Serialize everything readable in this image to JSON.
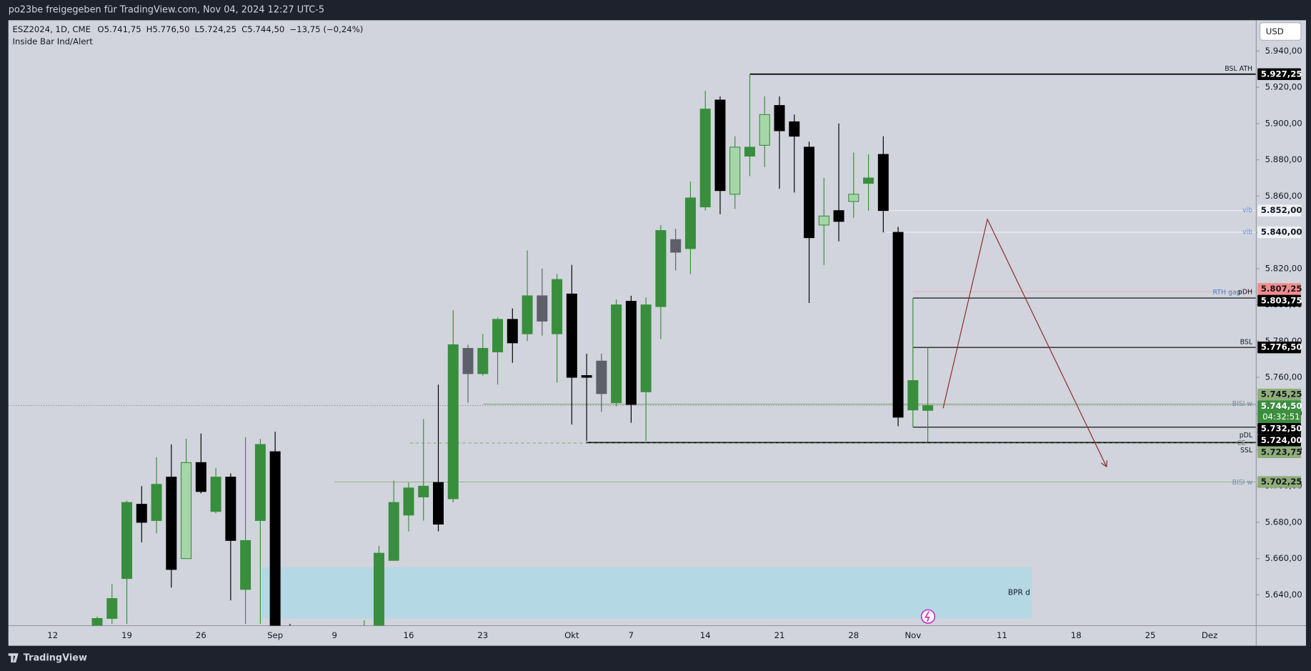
{
  "header": {
    "share_text": "po23be freigegeben für TradingView.com, Nov 04, 2024 12:27 UTC-5"
  },
  "footer": {
    "brand": "TradingView"
  },
  "chart_data": {
    "type": "candlestick",
    "legend": {
      "symbol": "ESZ2024, 1D, CME",
      "values": [
        "O5.741,75",
        "H5.776,50",
        "L5.724,25",
        "C5.744,50",
        "−13,75 (−0,24%)"
      ],
      "indicator": "Inside Bar Ind/Alert"
    },
    "currency": "USD",
    "categories": [
      "12",
      null,
      null,
      null,
      null,
      "19",
      null,
      null,
      null,
      null,
      "26",
      null,
      null,
      null,
      null,
      "Sep",
      null,
      null,
      null,
      "9",
      null,
      null,
      null,
      null,
      "16",
      null,
      null,
      null,
      null,
      "23",
      null,
      null,
      null,
      null,
      null,
      "Okt",
      null,
      null,
      null,
      "7",
      null,
      null,
      null,
      null,
      "14",
      null,
      null,
      null,
      null,
      "21",
      null,
      null,
      null,
      null,
      "28",
      null,
      null,
      null,
      "Nov",
      null,
      null,
      null,
      null,
      null,
      "11",
      null,
      null,
      null,
      null,
      "18",
      null,
      null,
      null,
      null,
      "25",
      null,
      null,
      null,
      "Dez"
    ],
    "open": [
      null,
      null,
      null,
      5621,
      5627,
      5649,
      5690,
      5681,
      5705,
      5660,
      5713,
      5686,
      5705,
      5643,
      5681,
      5719,
      5615,
      null,
      null,
      null,
      null,
      5600,
      5620,
      5659,
      5684,
      5694,
      5702,
      5693,
      5776,
      5762,
      5774,
      5792,
      5784,
      5805,
      5784,
      5806,
      5761,
      5769,
      5746,
      5802,
      5752,
      5799,
      5836,
      5831,
      5854,
      5913,
      5861,
      5882,
      5888,
      5910,
      5901,
      5887,
      5844,
      5852,
      5857,
      5867,
      5883,
      5840,
      5742,
      5741.75,
      null,
      null,
      null,
      null,
      null,
      null,
      null,
      null,
      null,
      null,
      null,
      null,
      null,
      null,
      null,
      null,
      null,
      null,
      null
    ],
    "high": [
      null,
      null,
      null,
      5628,
      5646,
      5692,
      5700,
      5716,
      5723,
      5726,
      5729,
      5710,
      5707,
      5727,
      5726,
      5730,
      5624,
      null,
      null,
      null,
      null,
      5626,
      5667,
      5703,
      5702,
      5737,
      5756,
      5797,
      5778,
      5784,
      5793,
      5798,
      5830,
      5820,
      5817,
      5822,
      5773,
      5773,
      5803,
      5805,
      5804,
      5844,
      5842,
      5868,
      5918,
      5915,
      5893,
      5927.25,
      5915,
      5915,
      5905,
      5890,
      5870,
      5900,
      5884,
      5883,
      5893,
      5843,
      5803.75,
      5776.5,
      null,
      null,
      null,
      null,
      null,
      null,
      null,
      null,
      null,
      null,
      null,
      null,
      null,
      null,
      null,
      null,
      null,
      null,
      null
    ],
    "low": [
      null,
      null,
      null,
      5615,
      5624,
      5624,
      5669,
      5674,
      5644,
      5660,
      5696,
      5685,
      5637,
      5624,
      5624,
      5590,
      5585,
      null,
      null,
      null,
      null,
      5580,
      5610,
      5659,
      5675,
      5681,
      5675,
      5691,
      5746,
      5761,
      5756,
      5768,
      5780,
      5783,
      5757,
      5734,
      5725,
      5741,
      5744,
      5735,
      5725,
      5781,
      5819,
      5817,
      5852,
      5850,
      5853,
      5871,
      5876,
      5864,
      5862,
      5801,
      5822,
      5835,
      5848,
      5852,
      5840,
      5733,
      5732.5,
      5724.25,
      null,
      null,
      null,
      null,
      null,
      null,
      null,
      null,
      null,
      null,
      null,
      null,
      null,
      null,
      null,
      null,
      null,
      null,
      null
    ],
    "close": [
      null,
      null,
      null,
      5627,
      5638,
      5691,
      5680,
      5701,
      5654,
      5713,
      5697,
      5705,
      5670,
      5670,
      5723,
      5600,
      5595,
      null,
      null,
      null,
      null,
      5615,
      5663,
      5691,
      5699,
      5700,
      5679,
      5778,
      5762,
      5776,
      5792,
      5779,
      5805,
      5791,
      5814,
      5760,
      5760,
      5751,
      5800,
      5745,
      5800,
      5841,
      5829,
      5859,
      5908,
      5863,
      5887,
      5887,
      5905,
      5896,
      5893,
      5837,
      5849,
      5846,
      5861,
      5870,
      5852,
      5738,
      5758.25,
      5744.5,
      null,
      null,
      null,
      null,
      null,
      null,
      null,
      null,
      null,
      null,
      null,
      null,
      null,
      null,
      null,
      null,
      null,
      null,
      null
    ],
    "candle_colors": [
      null,
      null,
      null,
      "#388e3c",
      "#388e3c",
      "#388e3c",
      "#000000",
      "#388e3c",
      "#000000",
      "#a5d6a7",
      "#000000",
      "#388e3c",
      "#000000",
      "#388e3c",
      "#388e3c",
      "#000000",
      "#000000",
      null,
      null,
      null,
      null,
      "#388e3c",
      "#388e3c",
      "#388e3c",
      "#388e3c",
      "#388e3c",
      "#000000",
      "#388e3c",
      "#5d606b",
      "#388e3c",
      "#388e3c",
      "#000000",
      "#388e3c",
      "#5d606b",
      "#388e3c",
      "#000000",
      "#000000",
      "#5d606b",
      "#388e3c",
      "#000000",
      "#388e3c",
      "#388e3c",
      "#5d606b",
      "#388e3c",
      "#388e3c",
      "#000000",
      "#a5d6a7",
      "#388e3c",
      "#a5d6a7",
      "#000000",
      "#000000",
      "#000000",
      "#a5d6a7",
      "#000000",
      "#a5d6a7",
      "#388e3c",
      "#000000",
      "#000000",
      "#388e3c",
      "#388e3c",
      null,
      null,
      null,
      null,
      null,
      null,
      null,
      null,
      null,
      null,
      null,
      null,
      null,
      null,
      null,
      null,
      null,
      null,
      null
    ],
    "ylim": [
      5623,
      5957
    ],
    "yticks": [
      {
        "value": 5640,
        "label": "5.640,00"
      },
      {
        "value": 5660,
        "label": "5.660,00"
      },
      {
        "value": 5680,
        "label": "5.680,00"
      },
      {
        "value": 5700,
        "label": "5.700,00"
      },
      {
        "value": 5720,
        "label": "5.720,00"
      },
      {
        "value": 5740,
        "label": "5.740,00"
      },
      {
        "value": 5760,
        "label": "5.760,00"
      },
      {
        "value": 5780,
        "label": "5.780,00"
      },
      {
        "value": 5800,
        "label": "5.800,00"
      },
      {
        "value": 5820,
        "label": "5.820,00"
      },
      {
        "value": 5840,
        "label": "5.840,00"
      },
      {
        "value": 5860,
        "label": "5.860,00"
      },
      {
        "value": 5880,
        "label": "5.880,00"
      },
      {
        "value": 5900,
        "label": "5.900,00"
      },
      {
        "value": 5920,
        "label": "5.920,00"
      },
      {
        "value": 5940,
        "label": "5.940,00"
      }
    ],
    "levels": [
      {
        "value": 5927.25,
        "label": "5.927,25",
        "tag": "BSL ATH",
        "color": "#000000"
      },
      {
        "value": 5852,
        "label": "5.852,00",
        "tag": "vib",
        "color": "#f0f2f7"
      },
      {
        "value": 5840,
        "label": "5.840,00",
        "tag": "vib",
        "color": "#f0f2f7"
      },
      {
        "value": 5807.25,
        "label": "5.807,25",
        "tag": "RTH gap",
        "color": "#f28b8b"
      },
      {
        "value": 5803.75,
        "label": "5.803,75",
        "tag": "pDH",
        "color": "#000000"
      },
      {
        "value": 5776.5,
        "label": "5.776,50",
        "tag": "BSL",
        "color": "#000000"
      },
      {
        "value": 5745.25,
        "label": "5.745,25",
        "tag": "BISI w",
        "color": "#8fae78"
      },
      {
        "value": 5744.5,
        "label": "5.744,50",
        "countdown": "04:32:51",
        "color": "#3b8e3e"
      },
      {
        "value": 5732.5,
        "label": "5.732,50",
        "tag": "pDL",
        "color": "#000000"
      },
      {
        "value": 5724,
        "label": "5.724,00",
        "tag": "CE",
        "color": "#000000"
      },
      {
        "value": 5723.75,
        "label": "5.723,75",
        "tag": "SSL",
        "color": "#8fae78"
      },
      {
        "value": 5702.25,
        "label": "5.702,25",
        "tag": "BISI w",
        "color": "#8fae78"
      }
    ],
    "zones": [
      {
        "label": "BPR d",
        "top": 5655.25,
        "bottom": 5627,
        "color": "#add8e6"
      }
    ]
  }
}
